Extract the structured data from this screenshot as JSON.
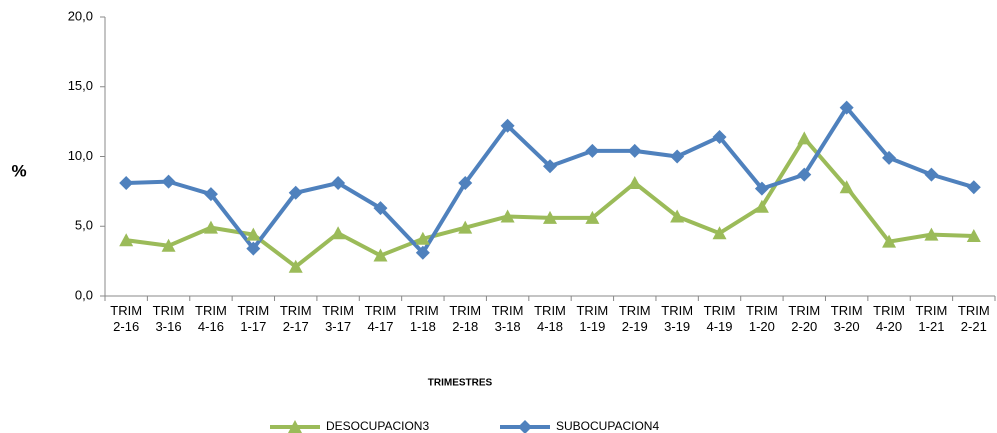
{
  "chart_data": {
    "type": "line",
    "x_label": "TRIMESTRES",
    "y_label": "%",
    "categories": [
      "TRIM 2-16",
      "TRIM 3-16",
      "TRIM 4-16",
      "TRIM 1-17",
      "TRIM 2-17",
      "TRIM 3-17",
      "TRIM 4-17",
      "TRIM 1-18",
      "TRIM 2-18",
      "TRIM 3-18",
      "TRIM 4-18",
      "TRIM 1-19",
      "TRIM 2-19",
      "TRIM 3-19",
      "TRIM 4-19",
      "TRIM 1-20",
      "TRIM 2-20",
      "TRIM 3-20",
      "TRIM 4-20",
      "TRIM 1-21",
      "TRIM 2-21"
    ],
    "series": [
      {
        "name": "DESOCUPACION3",
        "color": "#9bbb59",
        "marker": "triangle",
        "values": [
          4.0,
          3.6,
          4.9,
          4.4,
          2.1,
          4.5,
          2.9,
          4.1,
          4.9,
          5.7,
          5.6,
          5.6,
          8.1,
          5.7,
          4.5,
          6.4,
          11.3,
          7.8,
          3.9,
          4.4,
          4.3
        ]
      },
      {
        "name": "SUBOCUPACION4",
        "color": "#4f81bd",
        "marker": "diamond",
        "values": [
          8.1,
          8.2,
          7.3,
          3.4,
          7.4,
          8.1,
          6.3,
          3.1,
          8.1,
          12.2,
          9.3,
          10.4,
          10.4,
          10.0,
          11.4,
          7.7,
          8.7,
          13.5,
          9.9,
          8.7,
          7.8
        ]
      }
    ],
    "ylim": [
      0,
      20
    ],
    "yticks": [
      {
        "value": 0,
        "label": "0,0"
      },
      {
        "value": 5,
        "label": "5,0"
      },
      {
        "value": 10,
        "label": "10,0"
      },
      {
        "value": 15,
        "label": "15,0"
      },
      {
        "value": 20,
        "label": "20,0"
      }
    ],
    "grid": false,
    "legend": "bottom"
  }
}
